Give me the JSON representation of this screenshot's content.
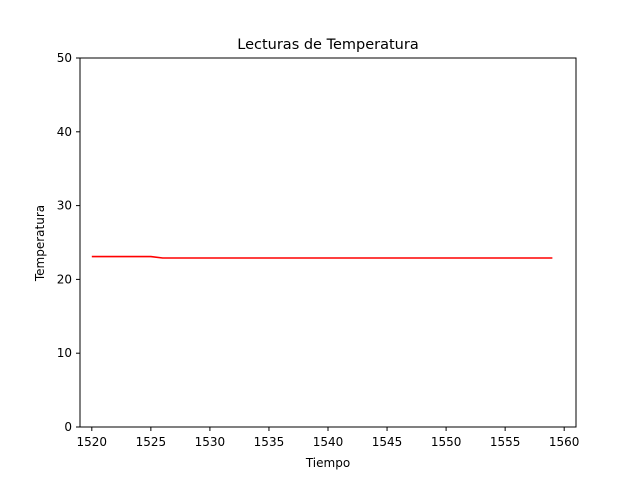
{
  "chart_data": {
    "type": "line",
    "title": "Lecturas de Temperatura",
    "xlabel": "Tiempo",
    "ylabel": "Temperatura",
    "xlim": [
      1519,
      1561
    ],
    "ylim": [
      0,
      50
    ],
    "x_ticks": [
      1520,
      1525,
      1530,
      1535,
      1540,
      1545,
      1550,
      1555,
      1560
    ],
    "y_ticks": [
      0,
      10,
      20,
      30,
      40,
      50
    ],
    "grid": false,
    "series": [
      {
        "color": "#ff0000",
        "x": [
          1520,
          1521,
          1522,
          1523,
          1524,
          1525,
          1526,
          1527,
          1528,
          1529,
          1530,
          1531,
          1532,
          1533,
          1534,
          1535,
          1536,
          1537,
          1538,
          1539,
          1540,
          1541,
          1542,
          1543,
          1544,
          1545,
          1546,
          1547,
          1548,
          1549,
          1550,
          1551,
          1552,
          1553,
          1554,
          1555,
          1556,
          1557,
          1558,
          1559
        ],
        "y": [
          23.1,
          23.1,
          23.1,
          23.1,
          23.1,
          23.1,
          22.9,
          22.9,
          22.9,
          22.9,
          22.9,
          22.9,
          22.9,
          22.9,
          22.9,
          22.9,
          22.9,
          22.9,
          22.9,
          22.9,
          22.9,
          22.9,
          22.9,
          22.9,
          22.9,
          22.9,
          22.9,
          22.9,
          22.9,
          22.9,
          22.9,
          22.9,
          22.9,
          22.9,
          22.9,
          22.9,
          22.9,
          22.9,
          22.9,
          22.9
        ]
      }
    ]
  }
}
